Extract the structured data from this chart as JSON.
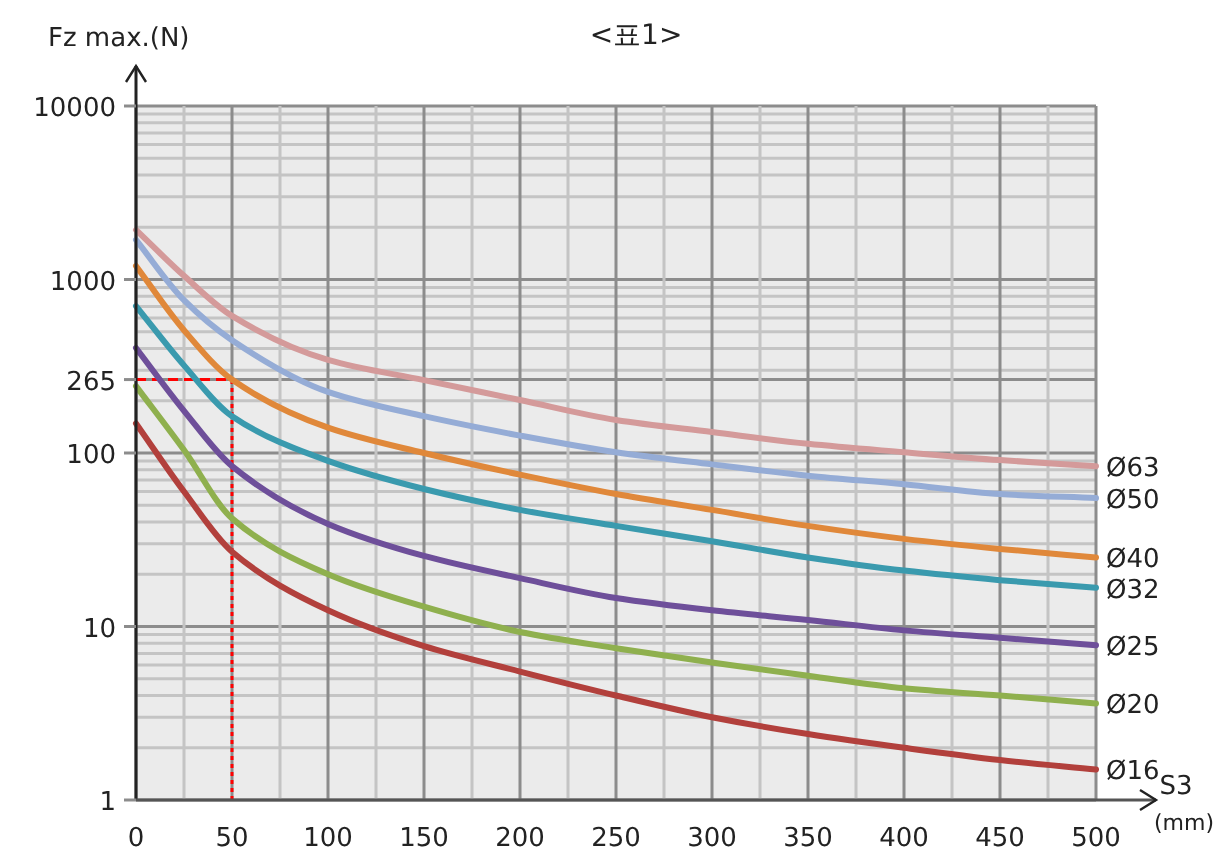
{
  "chart_data": {
    "type": "line",
    "title": "<표1>",
    "xlabel": "S3$_{(mm)}$",
    "ylabel": "Fz max.(N)",
    "x": [
      0,
      25,
      50,
      100,
      150,
      200,
      250,
      300,
      350,
      400,
      450,
      500
    ],
    "series": [
      {
        "name": "Ø63",
        "color": "#d49a9a",
        "values": [
          1930,
          1050,
          617,
          344,
          263,
          202,
          155,
          132,
          113,
          101,
          91,
          84
        ]
      },
      {
        "name": "Ø50",
        "color": "#95acd6",
        "values": [
          1690,
          760,
          447,
          225,
          163,
          126,
          101,
          86,
          74,
          66,
          58,
          55
        ]
      },
      {
        "name": "Ø40",
        "color": "#e0883a",
        "values": [
          1196,
          510,
          265,
          140,
          100,
          75,
          58,
          47,
          38,
          32,
          28,
          25
        ]
      },
      {
        "name": "Ø32",
        "color": "#3a9aae",
        "values": [
          703,
          320,
          163,
          90,
          62,
          47,
          38,
          31,
          25,
          21,
          18.5,
          16.7
        ]
      },
      {
        "name": "Ø25",
        "color": "#6e4f9a",
        "values": [
          403,
          175,
          84,
          39,
          25.5,
          19,
          14.6,
          12.4,
          10.9,
          9.5,
          8.6,
          7.8
        ]
      },
      {
        "name": "Ø20",
        "color": "#8fb04e",
        "values": [
          243,
          104,
          42,
          20,
          13,
          9.3,
          7.5,
          6.2,
          5.2,
          4.4,
          4.0,
          3.6
        ]
      },
      {
        "name": "Ø16",
        "color": "#b2403c",
        "values": [
          148,
          60,
          27,
          12.4,
          7.7,
          5.5,
          4.0,
          3.0,
          2.4,
          2.0,
          1.7,
          1.5
        ]
      }
    ],
    "xlim": [
      0,
      500
    ],
    "xticks": [
      0,
      50,
      100,
      150,
      200,
      250,
      300,
      350,
      400,
      450,
      500
    ],
    "ylim": [
      1,
      10000
    ],
    "yticks": [
      1,
      10,
      100,
      265,
      1000,
      10000
    ],
    "log": "y",
    "grid": true,
    "marker": "none",
    "line_style": "solid",
    "ref_lines": [
      {
        "axis": "x",
        "value": 50,
        "color": "#ff0000",
        "line_style": "dotted"
      },
      {
        "axis": "y",
        "value": 265,
        "color": "#ff0000",
        "line_style": "dashed"
      }
    ]
  }
}
